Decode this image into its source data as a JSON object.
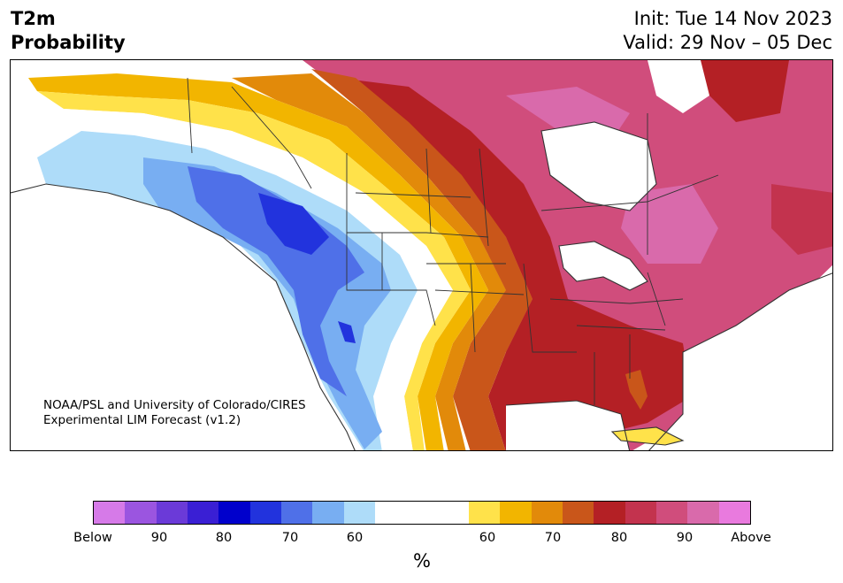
{
  "header": {
    "title_line1": "T2m",
    "title_line2": "Probability",
    "init": "Init: Tue 14 Nov 2023",
    "valid": "Valid: 29 Nov – 05 Dec"
  },
  "credit": {
    "line1": "NOAA/PSL and University of Colorado/CIRES",
    "line2": "Experimental LIM Forecast (v1.2)"
  },
  "colorbar": {
    "units": "%",
    "colors": [
      "#d67ae8",
      "#9b55e0",
      "#6b3ad8",
      "#3a1fd4",
      "#0000cc",
      "#2233dd",
      "#4f70e8",
      "#78aef2",
      "#aedcf9",
      "#ffffff",
      "#ffe24a",
      "#f2b500",
      "#e28a0a",
      "#c9561a",
      "#b42025",
      "#c3334e",
      "#d04d7c",
      "#d96aab",
      "#e97ade"
    ],
    "tick_labels": [
      "Below",
      "90",
      "80",
      "70",
      "60",
      "60",
      "70",
      "80",
      "90",
      "Above"
    ]
  },
  "map": {
    "region": "North America",
    "colors": {
      "above_strong": "#b42025",
      "above_mid": "#c9561a",
      "above_low": "#e28a0a",
      "above_min": "#f2b500",
      "above_edge": "#ffe24a",
      "above_pink": "#d04d7c",
      "above_pink2": "#d96aab",
      "above_red2": "#c3334e",
      "below_min": "#aedcf9",
      "below_low": "#78aef2",
      "below_mid": "#4f70e8",
      "below_strong": "#2233dd",
      "land_border": "#333333"
    }
  }
}
